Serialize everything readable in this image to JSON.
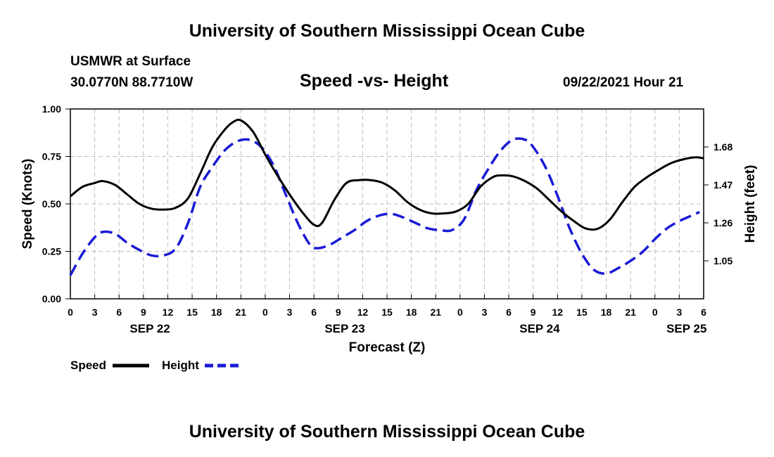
{
  "header": {
    "top_title": "University of Southern Mississippi Ocean Cube",
    "station": "USMWR at Surface",
    "coords": "30.0770N  88.7710W",
    "chart_title": "Speed -vs- Height",
    "datetime": "09/22/2021 Hour 21",
    "bottom_title": "University of Southern Mississippi Ocean Cube"
  },
  "colors": {
    "speed": "#000000",
    "height": "#1a1ad6",
    "grid": "#bdbdbd"
  },
  "chart_data": {
    "type": "line",
    "title": "Speed -vs- Height",
    "xlabel": "Forecast (Z)",
    "ylabel": "Speed (Knots)",
    "y2label": "Height (feet)",
    "x_range_hours": [
      0,
      78
    ],
    "ylim": [
      0,
      1
    ],
    "y2lim": [
      0.84,
      1.89
    ],
    "grid": true,
    "x_ticks": [
      {
        "h": 0,
        "label": "0"
      },
      {
        "h": 3,
        "label": "3"
      },
      {
        "h": 6,
        "label": "6"
      },
      {
        "h": 9,
        "label": "9"
      },
      {
        "h": 12,
        "label": "12"
      },
      {
        "h": 15,
        "label": "15"
      },
      {
        "h": 18,
        "label": "18"
      },
      {
        "h": 21,
        "label": "21"
      },
      {
        "h": 24,
        "label": "0"
      },
      {
        "h": 27,
        "label": "3"
      },
      {
        "h": 30,
        "label": "6"
      },
      {
        "h": 33,
        "label": "9"
      },
      {
        "h": 36,
        "label": "12"
      },
      {
        "h": 39,
        "label": "15"
      },
      {
        "h": 42,
        "label": "18"
      },
      {
        "h": 45,
        "label": "21"
      },
      {
        "h": 48,
        "label": "0"
      },
      {
        "h": 51,
        "label": "3"
      },
      {
        "h": 54,
        "label": "6"
      },
      {
        "h": 57,
        "label": "9"
      },
      {
        "h": 60,
        "label": "12"
      },
      {
        "h": 63,
        "label": "15"
      },
      {
        "h": 66,
        "label": "18"
      },
      {
        "h": 69,
        "label": "21"
      },
      {
        "h": 72,
        "label": "0"
      },
      {
        "h": 75,
        "label": "3"
      },
      {
        "h": 78,
        "label": "6"
      }
    ],
    "date_labels": [
      {
        "h": 9.8,
        "label": "SEP 22"
      },
      {
        "h": 33.8,
        "label": "SEP 23"
      },
      {
        "h": 57.8,
        "label": "SEP 24"
      },
      {
        "h": 75.9,
        "label": "SEP 25"
      }
    ],
    "y_ticks": [
      {
        "v": 0,
        "label": "0.00"
      },
      {
        "v": 0.25,
        "label": "0.25"
      },
      {
        "v": 0.5,
        "label": "0.50"
      },
      {
        "v": 0.75,
        "label": "0.75"
      },
      {
        "v": 1,
        "label": "1.00"
      }
    ],
    "y2_ticks": [
      {
        "v": 1.05,
        "label": "1.05"
      },
      {
        "v": 1.26,
        "label": "1.26"
      },
      {
        "v": 1.47,
        "label": "1.47"
      },
      {
        "v": 1.68,
        "label": "1.68"
      }
    ],
    "legend": {
      "placement": "bottom-left",
      "entries": [
        "Speed",
        "Height"
      ]
    },
    "series": [
      {
        "name": "Speed",
        "axis": "left",
        "style": "solid",
        "x": [
          0,
          1.5,
          3,
          4,
          5.5,
          7,
          8.5,
          10,
          11.5,
          13,
          14.5,
          16,
          17.5,
          19,
          20,
          21,
          22.5,
          24,
          25.5,
          27,
          28.5,
          30,
          31,
          32.5,
          34,
          35.5,
          37,
          38.5,
          40,
          41.5,
          43,
          44.5,
          46,
          47.5,
          49,
          50.5,
          52,
          53,
          54.5,
          56,
          57.5,
          59,
          60.5,
          62,
          63.5,
          65,
          66.5,
          68,
          69.5,
          71,
          72.5,
          74,
          75.5,
          77,
          78
        ],
        "y": [
          0.54,
          0.59,
          0.61,
          0.62,
          0.6,
          0.55,
          0.5,
          0.475,
          0.47,
          0.48,
          0.53,
          0.66,
          0.8,
          0.89,
          0.93,
          0.94,
          0.88,
          0.76,
          0.65,
          0.55,
          0.46,
          0.39,
          0.4,
          0.52,
          0.61,
          0.625,
          0.625,
          0.61,
          0.57,
          0.51,
          0.47,
          0.45,
          0.45,
          0.46,
          0.5,
          0.59,
          0.64,
          0.65,
          0.645,
          0.62,
          0.58,
          0.52,
          0.46,
          0.41,
          0.37,
          0.37,
          0.42,
          0.51,
          0.59,
          0.64,
          0.68,
          0.715,
          0.735,
          0.745,
          0.74
        ]
      },
      {
        "name": "Height",
        "axis": "right",
        "style": "dashed",
        "x": [
          0,
          1.5,
          3,
          4,
          5.5,
          7,
          8.5,
          10,
          11.5,
          13,
          14.5,
          16,
          17.5,
          19,
          20.5,
          22,
          23.5,
          25,
          26.5,
          28,
          29.5,
          30.5,
          32,
          33.5,
          35,
          36.5,
          38,
          39.5,
          41,
          42.5,
          44,
          45.5,
          47,
          48.5,
          50,
          51.5,
          53,
          54.5,
          56,
          57,
          58.5,
          60,
          61.5,
          63,
          64.5,
          66,
          67.5,
          69,
          70.5,
          72,
          73.5,
          75,
          76.5,
          77.5
        ],
        "y": [
          0.97,
          1.09,
          1.18,
          1.21,
          1.2,
          1.15,
          1.11,
          1.08,
          1.08,
          1.12,
          1.26,
          1.46,
          1.57,
          1.66,
          1.71,
          1.72,
          1.68,
          1.58,
          1.42,
          1.26,
          1.14,
          1.12,
          1.14,
          1.18,
          1.22,
          1.27,
          1.3,
          1.31,
          1.29,
          1.26,
          1.23,
          1.22,
          1.22,
          1.28,
          1.44,
          1.56,
          1.66,
          1.72,
          1.72,
          1.68,
          1.57,
          1.41,
          1.23,
          1.09,
          1.0,
          0.98,
          1.01,
          1.05,
          1.1,
          1.17,
          1.23,
          1.27,
          1.3,
          1.32
        ]
      }
    ]
  }
}
